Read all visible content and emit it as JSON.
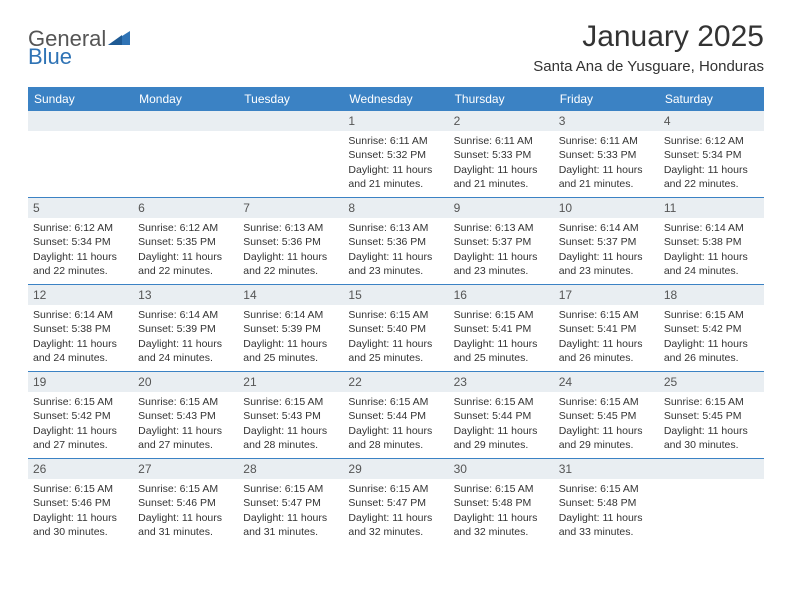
{
  "brand": {
    "part1": "General",
    "part2": "Blue"
  },
  "title": "January 2025",
  "location": "Santa Ana de Yusguare, Honduras",
  "colors": {
    "header_bg": "#3b82c4",
    "header_text": "#ffffff",
    "daynum_bg": "#e9eef2",
    "row_divider": "#3b82c4",
    "brand_gray": "#555555",
    "brand_blue": "#2f73b5",
    "text": "#333333",
    "background": "#ffffff"
  },
  "weekdays": [
    "Sunday",
    "Monday",
    "Tuesday",
    "Wednesday",
    "Thursday",
    "Friday",
    "Saturday"
  ],
  "weeks": [
    [
      {
        "blank": true
      },
      {
        "blank": true
      },
      {
        "blank": true
      },
      {
        "day": "1",
        "sunrise": "Sunrise: 6:11 AM",
        "sunset": "Sunset: 5:32 PM",
        "daylight1": "Daylight: 11 hours",
        "daylight2": "and 21 minutes."
      },
      {
        "day": "2",
        "sunrise": "Sunrise: 6:11 AM",
        "sunset": "Sunset: 5:33 PM",
        "daylight1": "Daylight: 11 hours",
        "daylight2": "and 21 minutes."
      },
      {
        "day": "3",
        "sunrise": "Sunrise: 6:11 AM",
        "sunset": "Sunset: 5:33 PM",
        "daylight1": "Daylight: 11 hours",
        "daylight2": "and 21 minutes."
      },
      {
        "day": "4",
        "sunrise": "Sunrise: 6:12 AM",
        "sunset": "Sunset: 5:34 PM",
        "daylight1": "Daylight: 11 hours",
        "daylight2": "and 22 minutes."
      }
    ],
    [
      {
        "day": "5",
        "sunrise": "Sunrise: 6:12 AM",
        "sunset": "Sunset: 5:34 PM",
        "daylight1": "Daylight: 11 hours",
        "daylight2": "and 22 minutes."
      },
      {
        "day": "6",
        "sunrise": "Sunrise: 6:12 AM",
        "sunset": "Sunset: 5:35 PM",
        "daylight1": "Daylight: 11 hours",
        "daylight2": "and 22 minutes."
      },
      {
        "day": "7",
        "sunrise": "Sunrise: 6:13 AM",
        "sunset": "Sunset: 5:36 PM",
        "daylight1": "Daylight: 11 hours",
        "daylight2": "and 22 minutes."
      },
      {
        "day": "8",
        "sunrise": "Sunrise: 6:13 AM",
        "sunset": "Sunset: 5:36 PM",
        "daylight1": "Daylight: 11 hours",
        "daylight2": "and 23 minutes."
      },
      {
        "day": "9",
        "sunrise": "Sunrise: 6:13 AM",
        "sunset": "Sunset: 5:37 PM",
        "daylight1": "Daylight: 11 hours",
        "daylight2": "and 23 minutes."
      },
      {
        "day": "10",
        "sunrise": "Sunrise: 6:14 AM",
        "sunset": "Sunset: 5:37 PM",
        "daylight1": "Daylight: 11 hours",
        "daylight2": "and 23 minutes."
      },
      {
        "day": "11",
        "sunrise": "Sunrise: 6:14 AM",
        "sunset": "Sunset: 5:38 PM",
        "daylight1": "Daylight: 11 hours",
        "daylight2": "and 24 minutes."
      }
    ],
    [
      {
        "day": "12",
        "sunrise": "Sunrise: 6:14 AM",
        "sunset": "Sunset: 5:38 PM",
        "daylight1": "Daylight: 11 hours",
        "daylight2": "and 24 minutes."
      },
      {
        "day": "13",
        "sunrise": "Sunrise: 6:14 AM",
        "sunset": "Sunset: 5:39 PM",
        "daylight1": "Daylight: 11 hours",
        "daylight2": "and 24 minutes."
      },
      {
        "day": "14",
        "sunrise": "Sunrise: 6:14 AM",
        "sunset": "Sunset: 5:39 PM",
        "daylight1": "Daylight: 11 hours",
        "daylight2": "and 25 minutes."
      },
      {
        "day": "15",
        "sunrise": "Sunrise: 6:15 AM",
        "sunset": "Sunset: 5:40 PM",
        "daylight1": "Daylight: 11 hours",
        "daylight2": "and 25 minutes."
      },
      {
        "day": "16",
        "sunrise": "Sunrise: 6:15 AM",
        "sunset": "Sunset: 5:41 PM",
        "daylight1": "Daylight: 11 hours",
        "daylight2": "and 25 minutes."
      },
      {
        "day": "17",
        "sunrise": "Sunrise: 6:15 AM",
        "sunset": "Sunset: 5:41 PM",
        "daylight1": "Daylight: 11 hours",
        "daylight2": "and 26 minutes."
      },
      {
        "day": "18",
        "sunrise": "Sunrise: 6:15 AM",
        "sunset": "Sunset: 5:42 PM",
        "daylight1": "Daylight: 11 hours",
        "daylight2": "and 26 minutes."
      }
    ],
    [
      {
        "day": "19",
        "sunrise": "Sunrise: 6:15 AM",
        "sunset": "Sunset: 5:42 PM",
        "daylight1": "Daylight: 11 hours",
        "daylight2": "and 27 minutes."
      },
      {
        "day": "20",
        "sunrise": "Sunrise: 6:15 AM",
        "sunset": "Sunset: 5:43 PM",
        "daylight1": "Daylight: 11 hours",
        "daylight2": "and 27 minutes."
      },
      {
        "day": "21",
        "sunrise": "Sunrise: 6:15 AM",
        "sunset": "Sunset: 5:43 PM",
        "daylight1": "Daylight: 11 hours",
        "daylight2": "and 28 minutes."
      },
      {
        "day": "22",
        "sunrise": "Sunrise: 6:15 AM",
        "sunset": "Sunset: 5:44 PM",
        "daylight1": "Daylight: 11 hours",
        "daylight2": "and 28 minutes."
      },
      {
        "day": "23",
        "sunrise": "Sunrise: 6:15 AM",
        "sunset": "Sunset: 5:44 PM",
        "daylight1": "Daylight: 11 hours",
        "daylight2": "and 29 minutes."
      },
      {
        "day": "24",
        "sunrise": "Sunrise: 6:15 AM",
        "sunset": "Sunset: 5:45 PM",
        "daylight1": "Daylight: 11 hours",
        "daylight2": "and 29 minutes."
      },
      {
        "day": "25",
        "sunrise": "Sunrise: 6:15 AM",
        "sunset": "Sunset: 5:45 PM",
        "daylight1": "Daylight: 11 hours",
        "daylight2": "and 30 minutes."
      }
    ],
    [
      {
        "day": "26",
        "sunrise": "Sunrise: 6:15 AM",
        "sunset": "Sunset: 5:46 PM",
        "daylight1": "Daylight: 11 hours",
        "daylight2": "and 30 minutes."
      },
      {
        "day": "27",
        "sunrise": "Sunrise: 6:15 AM",
        "sunset": "Sunset: 5:46 PM",
        "daylight1": "Daylight: 11 hours",
        "daylight2": "and 31 minutes."
      },
      {
        "day": "28",
        "sunrise": "Sunrise: 6:15 AM",
        "sunset": "Sunset: 5:47 PM",
        "daylight1": "Daylight: 11 hours",
        "daylight2": "and 31 minutes."
      },
      {
        "day": "29",
        "sunrise": "Sunrise: 6:15 AM",
        "sunset": "Sunset: 5:47 PM",
        "daylight1": "Daylight: 11 hours",
        "daylight2": "and 32 minutes."
      },
      {
        "day": "30",
        "sunrise": "Sunrise: 6:15 AM",
        "sunset": "Sunset: 5:48 PM",
        "daylight1": "Daylight: 11 hours",
        "daylight2": "and 32 minutes."
      },
      {
        "day": "31",
        "sunrise": "Sunrise: 6:15 AM",
        "sunset": "Sunset: 5:48 PM",
        "daylight1": "Daylight: 11 hours",
        "daylight2": "and 33 minutes."
      },
      {
        "blank": true
      }
    ]
  ]
}
